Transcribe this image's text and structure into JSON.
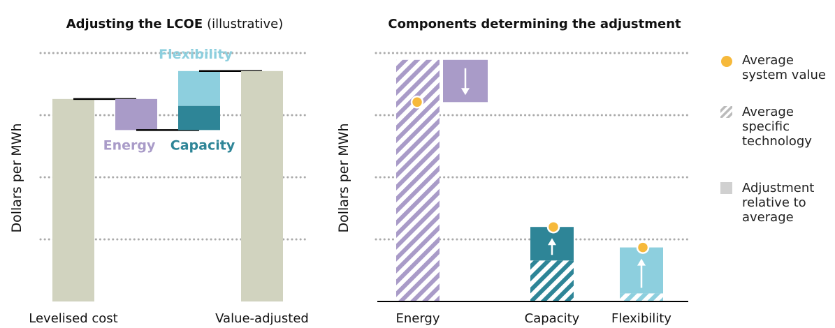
{
  "chart_data": [
    {
      "type": "waterfall",
      "title": "Adjusting the LCOE",
      "subtitle": "(illustrative)",
      "y_label": "Dollars per MWh",
      "start_label": "Levelised cost",
      "start_value": 3.26,
      "end_label": "Value-adjusted",
      "end_value": 3.71,
      "total_color": "#d1d3bf",
      "steps": [
        {
          "label": "Energy",
          "value": -0.5,
          "color": "#a99bc8"
        },
        {
          "label": "Capacity",
          "value": 0.39,
          "color": "#2e8597"
        },
        {
          "label": "Flexibility",
          "value": 0.56,
          "color": "#8dcfde"
        }
      ],
      "ylim": [
        0,
        4
      ],
      "gridlines": [
        1,
        2,
        3,
        4
      ]
    },
    {
      "type": "adjustment",
      "title": "Components determining the adjustment",
      "y_label": "Dollars per MWh",
      "categories": [
        "Energy",
        "Capacity",
        "Flexibility"
      ],
      "colors": [
        "#a99bc8",
        "#2e8597",
        "#8dcfde"
      ],
      "series": [
        {
          "name": "Average system value",
          "color": "#f6b93b",
          "values": [
            3.21,
            1.2,
            0.87
          ]
        },
        {
          "name": "Average specific technology",
          "color": "#bbbbbb",
          "values": [
            3.89,
            0.66,
            0.13
          ]
        }
      ],
      "adjustment_label": "Adjustment relative to average",
      "adjustment_color": "#d0d0d0",
      "ylim": [
        0,
        4
      ],
      "gridlines": [
        1,
        2,
        3,
        4
      ]
    }
  ]
}
